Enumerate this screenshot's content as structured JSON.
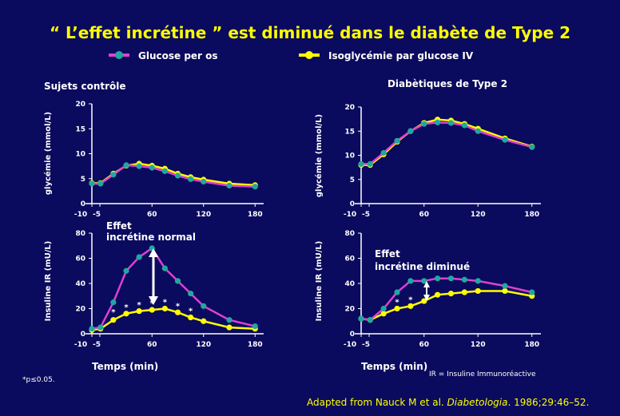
{
  "slide": {
    "title": "“ L’effet incrétine ” est diminué dans le diabète de Type 2",
    "legend": {
      "oral_label": "Glucose per os",
      "iv_label": "Isoglycémie par glucose IV"
    },
    "panel_titles": {
      "control": "Sujets contrôle",
      "diabetic": "Diabètiques de Type 2"
    },
    "annotations": {
      "effect_normal_line1": "Effet",
      "effect_normal_line2": "incrétine normal",
      "effect_diminished_line1": "Effet",
      "effect_diminished_line2": "incrétine diminué",
      "ir_note": "IR = Insuline Immunoréactive",
      "pvalue": "*p≤0.05.",
      "star": "*"
    },
    "citation": {
      "prefix": "Adapted from Nauck M et al. ",
      "journal": "Diabetologia",
      "suffix": ". 1986;29:46–52."
    },
    "colors": {
      "background": "#0a0a5e",
      "title": "#ffff00",
      "oral_line": "#e040d0",
      "oral_marker": "#20a8a0",
      "iv_line": "#ffff00",
      "iv_marker": "#ffff00",
      "text": "#ffffff"
    }
  },
  "chart_data": [
    {
      "id": "control-glucose",
      "type": "line",
      "ylabel": "glycémie (mmol/L)",
      "xlabel": "",
      "xlim": [
        -10,
        190
      ],
      "ylim": [
        0,
        20
      ],
      "xticks": [
        -10,
        -5,
        60,
        120,
        180
      ],
      "yticks": [
        0,
        5,
        10,
        15,
        20
      ],
      "series": [
        {
          "name": "Glucose per os",
          "x": [
            -10,
            0,
            15,
            30,
            45,
            60,
            75,
            90,
            105,
            120,
            150,
            180
          ],
          "y": [
            4.0,
            4.0,
            5.8,
            7.7,
            7.5,
            7.2,
            6.5,
            5.6,
            4.9,
            4.4,
            3.6,
            3.4
          ]
        },
        {
          "name": "Isoglycémie par glucose IV",
          "x": [
            -10,
            0,
            15,
            30,
            45,
            60,
            75,
            90,
            105,
            120,
            150,
            180
          ],
          "y": [
            4.1,
            4.1,
            6.0,
            7.6,
            8.0,
            7.6,
            7.0,
            6.0,
            5.3,
            4.8,
            4.0,
            3.7
          ]
        }
      ],
      "annotations": []
    },
    {
      "id": "diabetic-glucose",
      "type": "line",
      "ylabel": "glycémie (mmol/L)",
      "xlabel": "",
      "xlim": [
        -10,
        190
      ],
      "ylim": [
        0,
        20
      ],
      "xticks": [
        -10,
        -5,
        60,
        120,
        180
      ],
      "yticks": [
        0,
        5,
        10,
        15,
        20
      ],
      "series": [
        {
          "name": "Glucose per os",
          "x": [
            -10,
            0,
            15,
            30,
            45,
            60,
            75,
            90,
            105,
            120,
            150,
            180
          ],
          "y": [
            8.2,
            8.2,
            10.5,
            13.0,
            15.0,
            16.5,
            16.8,
            16.7,
            16.2,
            15.0,
            13.2,
            11.7
          ]
        },
        {
          "name": "Isoglycémie par glucose IV",
          "x": [
            -10,
            0,
            15,
            30,
            45,
            60,
            75,
            90,
            105,
            120,
            150,
            180
          ],
          "y": [
            8.0,
            8.0,
            10.2,
            12.8,
            15.0,
            16.7,
            17.4,
            17.2,
            16.5,
            15.5,
            13.5,
            11.8
          ]
        }
      ],
      "annotations": []
    },
    {
      "id": "control-insulin",
      "type": "line",
      "ylabel": "Insuline IR  (mU/L)",
      "xlabel": "Temps (min)",
      "xlim": [
        -10,
        190
      ],
      "ylim": [
        0,
        80
      ],
      "xticks": [
        -10,
        -5,
        60,
        120,
        180
      ],
      "yticks": [
        0,
        20,
        40,
        60,
        80
      ],
      "series": [
        {
          "name": "Glucose per os",
          "x": [
            -10,
            0,
            15,
            30,
            45,
            60,
            75,
            90,
            105,
            120,
            150,
            180
          ],
          "y": [
            4,
            5,
            25,
            50,
            61,
            68,
            52,
            42,
            32,
            22,
            11,
            6
          ]
        },
        {
          "name": "Isoglycémie par glucose IV",
          "x": [
            -10,
            0,
            15,
            30,
            45,
            60,
            75,
            90,
            105,
            120,
            150,
            180
          ],
          "y": [
            3,
            4,
            11,
            16,
            18,
            19,
            20,
            17,
            13,
            10,
            5,
            4
          ]
        }
      ],
      "annotations": [
        {
          "label": "*",
          "x": 15,
          "y": 17
        },
        {
          "label": "*",
          "x": 30,
          "y": 21
        },
        {
          "label": "*",
          "x": 45,
          "y": 23
        },
        {
          "label": "*",
          "x": 60,
          "y": 24
        },
        {
          "label": "*",
          "x": 75,
          "y": 25
        },
        {
          "label": "*",
          "x": 90,
          "y": 22
        },
        {
          "label": "*",
          "x": 105,
          "y": 18
        }
      ]
    },
    {
      "id": "diabetic-insulin",
      "type": "line",
      "ylabel": "Insuline IR  (mU/L)",
      "xlabel": "Temps (min)",
      "xlim": [
        -10,
        190
      ],
      "ylim": [
        0,
        80
      ],
      "xticks": [
        -10,
        -5,
        60,
        120,
        180
      ],
      "yticks": [
        0,
        20,
        40,
        60,
        80
      ],
      "series": [
        {
          "name": "Glucose per os",
          "x": [
            -10,
            0,
            15,
            30,
            45,
            60,
            75,
            90,
            105,
            120,
            150,
            180
          ],
          "y": [
            12,
            11,
            20,
            33,
            42,
            42,
            44,
            44,
            43,
            42,
            38,
            33
          ]
        },
        {
          "name": "Isoglycémie par glucose IV",
          "x": [
            -10,
            0,
            15,
            30,
            45,
            60,
            75,
            90,
            105,
            120,
            150,
            180
          ],
          "y": [
            12,
            11,
            16,
            20,
            22,
            26,
            31,
            32,
            33,
            34,
            34,
            30
          ]
        }
      ],
      "annotations": [
        {
          "label": "*",
          "x": 30,
          "y": 25
        },
        {
          "label": "*",
          "x": 45,
          "y": 27
        }
      ]
    }
  ]
}
